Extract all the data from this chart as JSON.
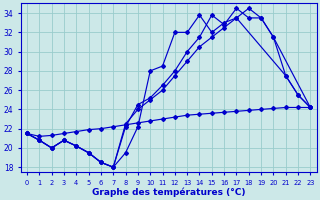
{
  "xlabel": "Graphe des températures (°C)",
  "bg_color": "#cce8e8",
  "line_color": "#0000cc",
  "grid_color": "#99cccc",
  "ylim": [
    17.5,
    35.0
  ],
  "yticks": [
    18,
    20,
    22,
    24,
    26,
    28,
    30,
    32,
    34
  ],
  "x_ticks": [
    0,
    1,
    2,
    3,
    4,
    5,
    6,
    7,
    8,
    9,
    10,
    11,
    12,
    13,
    14,
    15,
    16,
    17,
    18,
    19,
    20,
    21,
    22,
    23
  ],
  "line1_y": [
    21.5,
    20.8,
    20.0,
    20.8,
    20.2,
    19.5,
    18.5,
    18.0,
    19.5,
    22.2,
    28.0,
    28.5,
    32.0,
    32.0,
    33.8,
    32.0,
    33.0,
    33.5,
    27.5,
    25.5,
    24.2
  ],
  "line1_x": [
    0,
    1,
    2,
    3,
    4,
    5,
    6,
    7,
    8,
    9,
    10,
    11,
    12,
    13,
    14,
    15,
    16,
    17,
    21,
    22,
    23
  ],
  "line2_y": [
    21.5,
    20.8,
    20.0,
    20.8,
    20.2,
    19.5,
    18.5,
    18.0,
    22.2,
    24.5,
    25.2,
    26.5,
    28.0,
    30.0,
    31.5,
    33.8,
    32.8,
    34.5,
    33.5,
    33.5,
    31.5,
    24.2
  ],
  "line2_x": [
    0,
    1,
    2,
    3,
    4,
    5,
    6,
    7,
    8,
    9,
    10,
    11,
    12,
    13,
    14,
    15,
    16,
    17,
    18,
    19,
    20,
    23
  ],
  "line3_y": [
    21.5,
    20.8,
    20.0,
    20.8,
    20.2,
    19.5,
    18.5,
    18.0,
    22.5,
    24.0,
    25.0,
    26.0,
    27.5,
    29.0,
    30.5,
    31.5,
    32.5,
    33.5,
    34.5,
    33.5,
    31.5,
    27.5,
    25.5,
    24.2
  ],
  "line3_x": [
    0,
    1,
    2,
    3,
    4,
    5,
    6,
    7,
    8,
    9,
    10,
    11,
    12,
    13,
    14,
    15,
    16,
    17,
    18,
    19,
    20,
    21,
    22,
    23
  ],
  "line4_y": [
    21.5,
    21.2,
    21.3,
    21.5,
    21.7,
    21.9,
    22.0,
    22.2,
    22.4,
    22.6,
    22.8,
    23.0,
    23.2,
    23.4,
    23.5,
    23.6,
    23.7,
    23.8,
    23.9,
    24.0,
    24.1,
    24.2,
    24.2,
    24.2
  ],
  "line4_x": [
    0,
    1,
    2,
    3,
    4,
    5,
    6,
    7,
    8,
    9,
    10,
    11,
    12,
    13,
    14,
    15,
    16,
    17,
    18,
    19,
    20,
    21,
    22,
    23
  ]
}
